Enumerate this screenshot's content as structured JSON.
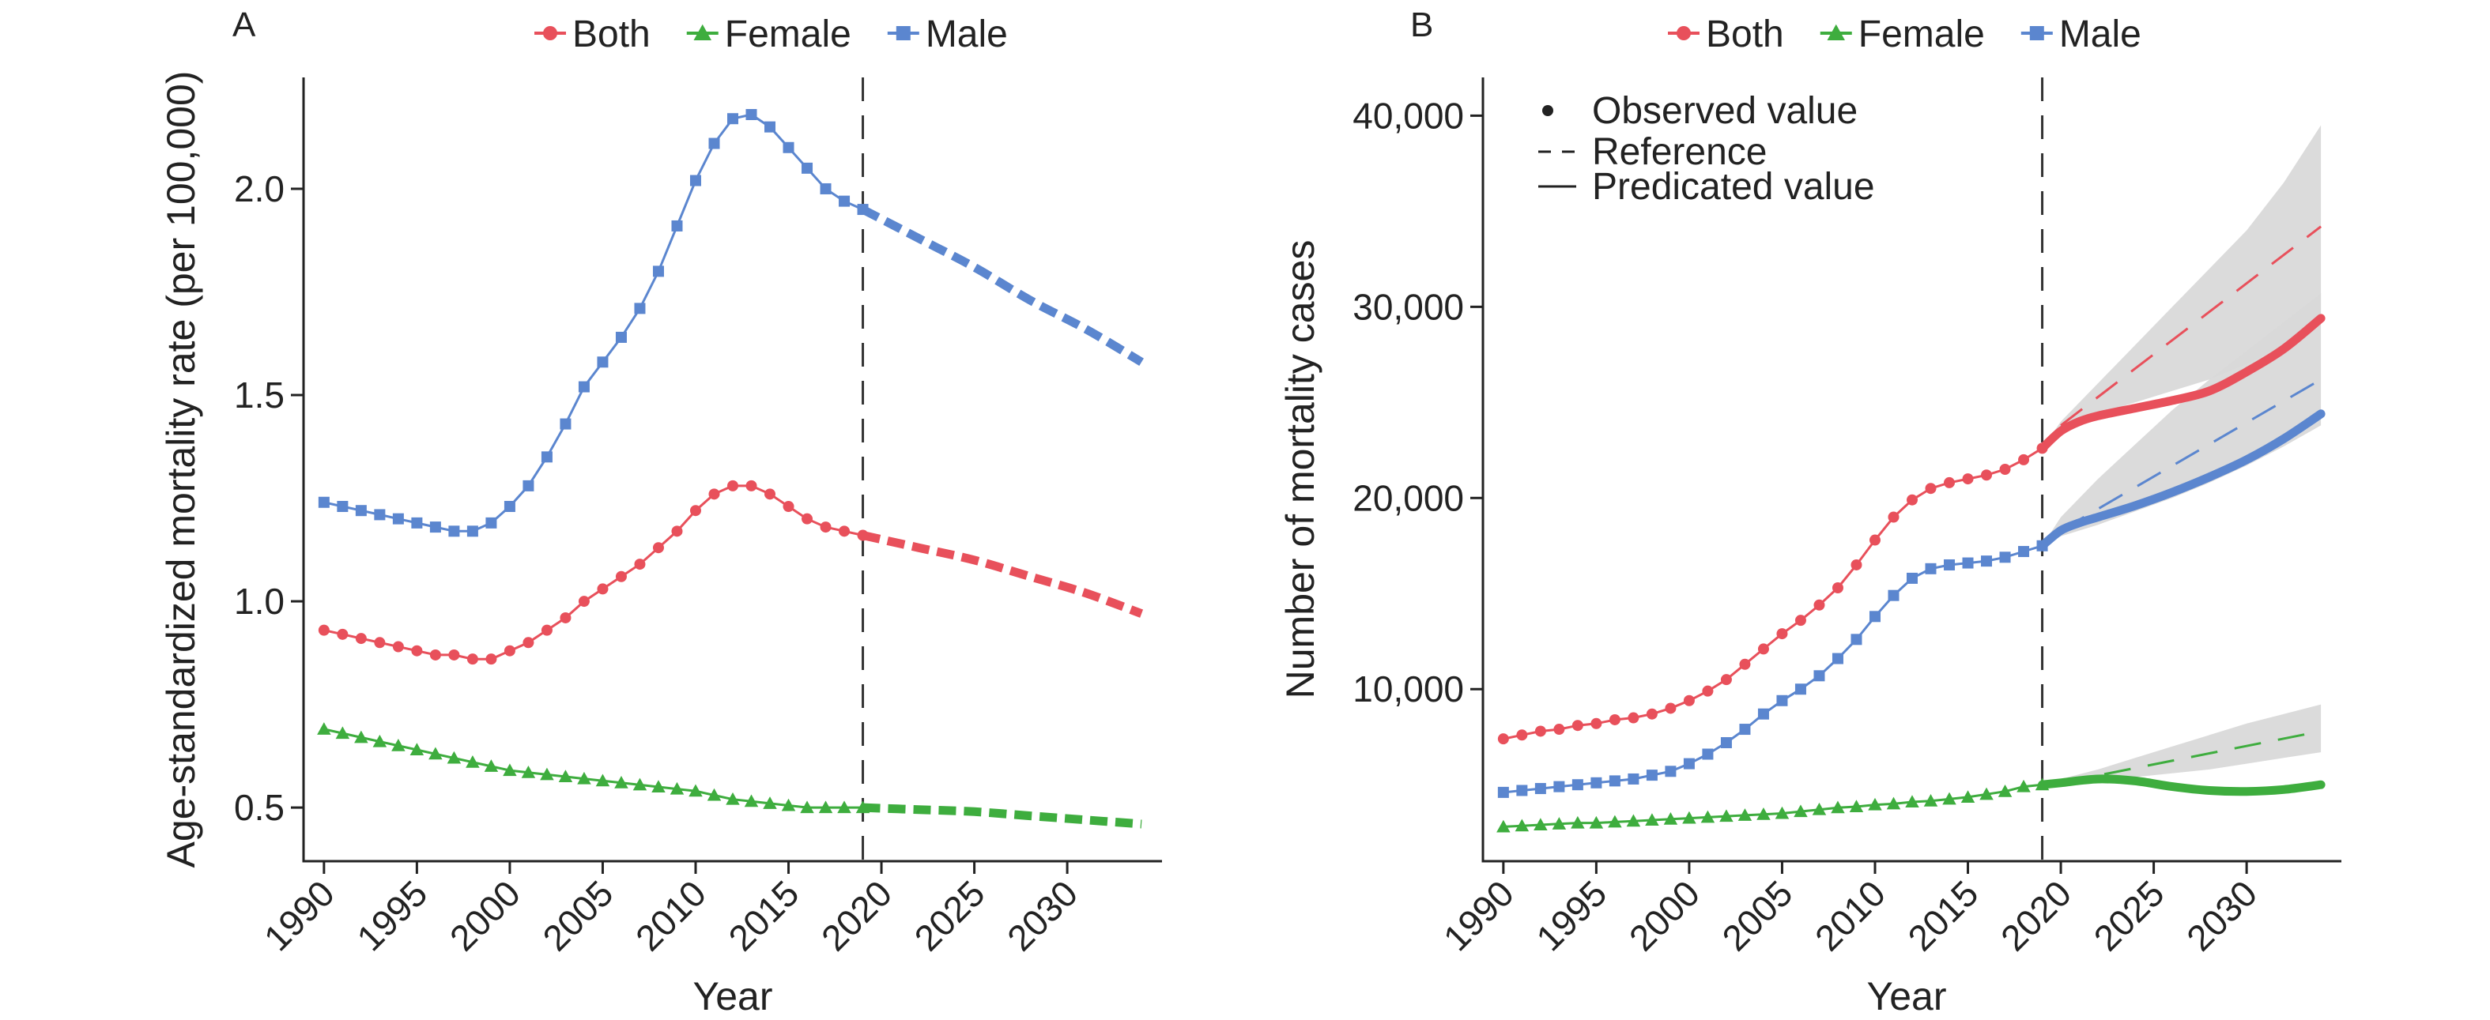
{
  "colors": {
    "both": "#E8505B",
    "female": "#3EAD3E",
    "male": "#5B86CF",
    "band": "#D9D9D9"
  },
  "chart_data": [
    {
      "panel": "A",
      "type": "line",
      "xlabel": "Year",
      "ylabel": "Age-standardized mortality rate (per 100,000)",
      "xlim": [
        1988.9,
        2035.1
      ],
      "ylim": [
        0.37,
        2.27
      ],
      "xticks": [
        1990,
        1995,
        2000,
        2005,
        2010,
        2015,
        2020,
        2025,
        2030
      ],
      "xtick_labels": [
        "1990",
        "1995",
        "2000",
        "2005",
        "2010",
        "2015",
        "2020",
        "2025",
        "2030"
      ],
      "yticks": [
        0.5,
        1.0,
        1.5,
        2.0
      ],
      "ytick_labels": [
        "0.5",
        "1.0",
        "1.5",
        "2.0"
      ],
      "cutoff_year": 2019,
      "legend": [
        "Both",
        "Female",
        "Male"
      ],
      "series": [
        {
          "name": "Both",
          "key": "both",
          "marker": "circle",
          "observed_x": [
            1990,
            1991,
            1992,
            1993,
            1994,
            1995,
            1996,
            1997,
            1998,
            1999,
            2000,
            2001,
            2002,
            2003,
            2004,
            2005,
            2006,
            2007,
            2008,
            2009,
            2010,
            2011,
            2012,
            2013,
            2014,
            2015,
            2016,
            2017,
            2018,
            2019
          ],
          "observed": [
            0.93,
            0.92,
            0.91,
            0.9,
            0.89,
            0.88,
            0.87,
            0.87,
            0.86,
            0.86,
            0.88,
            0.9,
            0.93,
            0.96,
            1.0,
            1.03,
            1.06,
            1.09,
            1.13,
            1.17,
            1.22,
            1.26,
            1.28,
            1.28,
            1.26,
            1.23,
            1.2,
            1.18,
            1.17,
            1.16
          ],
          "projected_x": [
            2019,
            2022,
            2025,
            2028,
            2031,
            2034
          ],
          "projected": [
            1.16,
            1.13,
            1.1,
            1.06,
            1.02,
            0.97
          ]
        },
        {
          "name": "Female",
          "key": "female",
          "marker": "triangle",
          "observed_x": [
            1990,
            1991,
            1992,
            1993,
            1994,
            1995,
            1996,
            1997,
            1998,
            1999,
            2000,
            2001,
            2002,
            2003,
            2004,
            2005,
            2006,
            2007,
            2008,
            2009,
            2010,
            2011,
            2012,
            2013,
            2014,
            2015,
            2016,
            2017,
            2018,
            2019
          ],
          "observed": [
            0.69,
            0.68,
            0.67,
            0.66,
            0.65,
            0.64,
            0.63,
            0.62,
            0.61,
            0.6,
            0.59,
            0.585,
            0.58,
            0.575,
            0.57,
            0.565,
            0.56,
            0.555,
            0.55,
            0.545,
            0.54,
            0.53,
            0.52,
            0.515,
            0.51,
            0.505,
            0.5,
            0.5,
            0.5,
            0.5
          ],
          "projected_x": [
            2019,
            2022,
            2025,
            2028,
            2031,
            2034
          ],
          "projected": [
            0.5,
            0.495,
            0.49,
            0.48,
            0.47,
            0.46
          ]
        },
        {
          "name": "Male",
          "key": "male",
          "marker": "square",
          "observed_x": [
            1990,
            1991,
            1992,
            1993,
            1994,
            1995,
            1996,
            1997,
            1998,
            1999,
            2000,
            2001,
            2002,
            2003,
            2004,
            2005,
            2006,
            2007,
            2008,
            2009,
            2010,
            2011,
            2012,
            2013,
            2014,
            2015,
            2016,
            2017,
            2018,
            2019
          ],
          "observed": [
            1.24,
            1.23,
            1.22,
            1.21,
            1.2,
            1.19,
            1.18,
            1.17,
            1.17,
            1.19,
            1.23,
            1.28,
            1.35,
            1.43,
            1.52,
            1.58,
            1.64,
            1.71,
            1.8,
            1.91,
            2.02,
            2.11,
            2.17,
            2.18,
            2.15,
            2.1,
            2.05,
            2.0,
            1.97,
            1.95
          ],
          "projected_x": [
            2019,
            2022,
            2025,
            2028,
            2031,
            2034
          ],
          "projected": [
            1.95,
            1.88,
            1.81,
            1.73,
            1.66,
            1.58
          ]
        }
      ]
    },
    {
      "panel": "B",
      "type": "line",
      "xlabel": "Year",
      "ylabel": "Number of mortality cases",
      "xlim": [
        1988.9,
        2035.1
      ],
      "ylim": [
        1000,
        42000
      ],
      "xticks": [
        1990,
        1995,
        2000,
        2005,
        2010,
        2015,
        2020,
        2025,
        2030
      ],
      "xtick_labels": [
        "1990",
        "1995",
        "2000",
        "2005",
        "2010",
        "2015",
        "2020",
        "2025",
        "2030"
      ],
      "yticks": [
        10000,
        20000,
        30000,
        40000
      ],
      "ytick_labels": [
        "10,000",
        "20,000",
        "30,000",
        "40,000"
      ],
      "cutoff_year": 2019,
      "legend": [
        "Both",
        "Female",
        "Male"
      ],
      "line_type_legend": [
        "Observed value",
        "Reference",
        "Predicated value"
      ],
      "series": [
        {
          "name": "Both",
          "key": "both",
          "marker": "circle",
          "observed_x": [
            1990,
            1991,
            1992,
            1993,
            1994,
            1995,
            1996,
            1997,
            1998,
            1999,
            2000,
            2001,
            2002,
            2003,
            2004,
            2005,
            2006,
            2007,
            2008,
            2009,
            2010,
            2011,
            2012,
            2013,
            2014,
            2015,
            2016,
            2017,
            2018,
            2019
          ],
          "observed": [
            7400,
            7600,
            7800,
            7900,
            8100,
            8200,
            8400,
            8500,
            8700,
            9000,
            9400,
            9900,
            10500,
            11300,
            12100,
            12900,
            13600,
            14400,
            15300,
            16500,
            17800,
            19000,
            19900,
            20500,
            20800,
            21000,
            21200,
            21500,
            22000,
            22600
          ],
          "predicted_x": [
            2019,
            2020,
            2021,
            2022,
            2024,
            2026,
            2028,
            2030,
            2032,
            2034
          ],
          "predicted": [
            22600,
            23500,
            24000,
            24300,
            24700,
            25100,
            25600,
            26600,
            27800,
            29400
          ],
          "reference_x": [
            2020,
            2034
          ],
          "reference": [
            23800,
            34200
          ],
          "band_x": [
            2019,
            2020,
            2022,
            2024,
            2026,
            2028,
            2030,
            2032,
            2034
          ],
          "band_upper": [
            22600,
            24000,
            26000,
            28000,
            30000,
            32000,
            34000,
            36500,
            39500
          ],
          "band_lower": [
            22600,
            23500,
            24400,
            25000,
            25600,
            26200,
            27000,
            28000,
            29200
          ]
        },
        {
          "name": "Female",
          "key": "female",
          "marker": "triangle",
          "observed_x": [
            1990,
            1991,
            1992,
            1993,
            1994,
            1995,
            1996,
            1997,
            1998,
            1999,
            2000,
            2001,
            2002,
            2003,
            2004,
            2005,
            2006,
            2007,
            2008,
            2009,
            2010,
            2011,
            2012,
            2013,
            2014,
            2015,
            2016,
            2017,
            2018,
            2019
          ],
          "observed": [
            2800,
            2850,
            2900,
            2950,
            3000,
            3000,
            3050,
            3100,
            3150,
            3200,
            3250,
            3300,
            3350,
            3400,
            3450,
            3500,
            3600,
            3700,
            3800,
            3850,
            3950,
            4000,
            4100,
            4150,
            4250,
            4350,
            4500,
            4650,
            4900,
            5000
          ],
          "predicted_x": [
            2019,
            2020,
            2022,
            2024,
            2026,
            2028,
            2030,
            2032,
            2034
          ],
          "predicted": [
            5000,
            5100,
            5300,
            5200,
            4900,
            4700,
            4650,
            4750,
            5000
          ],
          "reference_x": [
            2020,
            2034
          ],
          "reference": [
            5100,
            7800
          ],
          "band_x": [
            2019,
            2020,
            2022,
            2024,
            2026,
            2028,
            2030,
            2032,
            2034
          ],
          "band_upper": [
            5000,
            5300,
            5800,
            6400,
            7000,
            7600,
            8200,
            8700,
            9200
          ],
          "band_lower": [
            5000,
            5000,
            5200,
            5400,
            5600,
            5800,
            6100,
            6400,
            6700
          ]
        },
        {
          "name": "Male",
          "key": "male",
          "marker": "square",
          "observed_x": [
            1990,
            1991,
            1992,
            1993,
            1994,
            1995,
            1996,
            1997,
            1998,
            1999,
            2000,
            2001,
            2002,
            2003,
            2004,
            2005,
            2006,
            2007,
            2008,
            2009,
            2010,
            2011,
            2012,
            2013,
            2014,
            2015,
            2016,
            2017,
            2018,
            2019
          ],
          "observed": [
            4600,
            4700,
            4800,
            4900,
            5000,
            5100,
            5200,
            5300,
            5500,
            5700,
            6100,
            6600,
            7200,
            7900,
            8700,
            9400,
            10000,
            10700,
            11600,
            12600,
            13800,
            14900,
            15800,
            16300,
            16500,
            16600,
            16700,
            16900,
            17200,
            17500
          ],
          "predicted_x": [
            2019,
            2020,
            2021,
            2022,
            2024,
            2026,
            2028,
            2030,
            2032,
            2034
          ],
          "predicted": [
            17500,
            18300,
            18700,
            19000,
            19600,
            20300,
            21100,
            22000,
            23100,
            24400
          ],
          "reference_x": [
            2020,
            2034
          ],
          "reference": [
            18300,
            26200
          ],
          "band_x": [
            2019,
            2020,
            2022,
            2024,
            2026,
            2028,
            2030,
            2032,
            2034
          ],
          "band_upper": [
            17500,
            19000,
            21000,
            22800,
            24600,
            26200,
            27700,
            29200,
            30700
          ],
          "band_lower": [
            17500,
            18000,
            18600,
            19300,
            20000,
            20800,
            21700,
            22700,
            23800
          ]
        }
      ]
    }
  ]
}
